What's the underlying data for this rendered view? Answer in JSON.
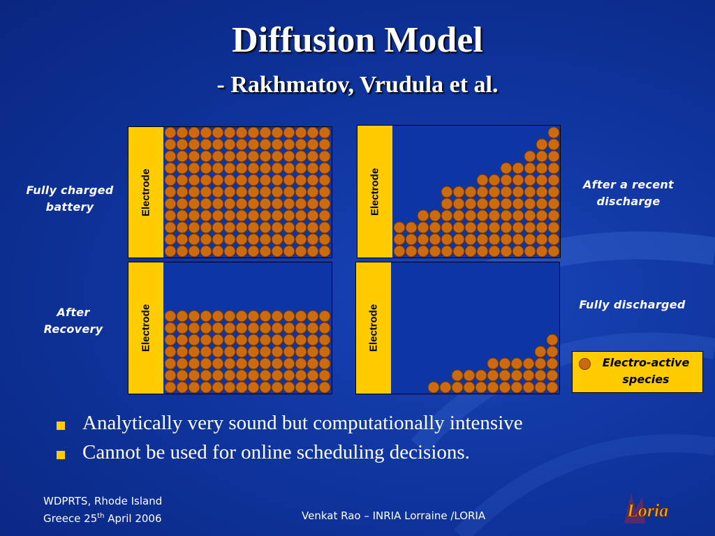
{
  "title": "Diffusion Model",
  "subtitle": "- Rakhmatov, Vrudula et al.",
  "panels": [
    {
      "electrode_label": "Electrode",
      "state_label": "Fully charged battery",
      "column_heights": [
        11,
        11,
        11,
        11,
        11,
        11,
        11,
        11,
        11,
        11,
        11,
        11,
        11,
        11
      ]
    },
    {
      "electrode_label": "Electrode",
      "state_label": "After a recent discharge",
      "column_heights": [
        3,
        3,
        4,
        4,
        6,
        6,
        6,
        7,
        7,
        8,
        8,
        9,
        10,
        11
      ]
    },
    {
      "electrode_label": "Electrode",
      "state_label": "After Recovery",
      "column_heights": [
        7,
        7,
        7,
        7,
        7,
        7,
        7,
        7,
        7,
        7,
        7,
        7,
        7,
        7
      ]
    },
    {
      "electrode_label": "Electrode",
      "state_label": "Fully discharged",
      "column_heights": [
        0,
        0,
        0,
        1,
        1,
        2,
        2,
        2,
        3,
        3,
        3,
        3,
        4,
        5
      ]
    }
  ],
  "legend": {
    "label": "Electro-active species",
    "icon": "electro-active-species-dot"
  },
  "bullets": [
    "Analytically very sound but computationally  intensive",
    "Cannot be used for online scheduling decisions."
  ],
  "footer": {
    "left_line1": "WDPRTS, Rhode Island",
    "left_line2_pre": "Greece 25",
    "left_line2_sup": "th",
    "left_line2_post": " April 2006",
    "center": "Venkat Rao – INRIA Lorraine /LORIA",
    "logo_text": "Loria"
  },
  "colors": {
    "background": "#0f359f",
    "electrode": "#ffcc00",
    "species": "#cc6a10",
    "bullet": "#ffcc00"
  }
}
